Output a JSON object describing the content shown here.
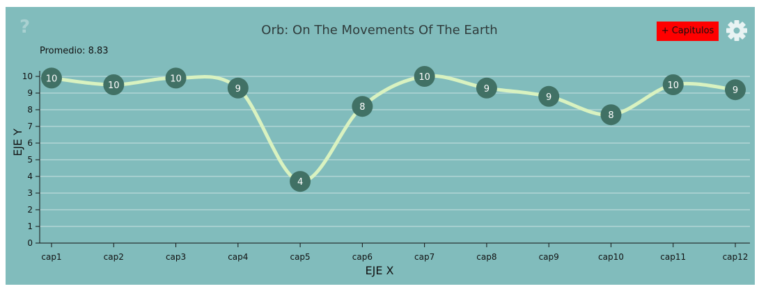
{
  "header": {
    "title": "Orb: On The Movements Of The Earth",
    "average": "Promedio: 8.83",
    "help_icon": "?",
    "add_button": "+ Capitulos",
    "settings_icon": "gear-icon"
  },
  "colors": {
    "panel": "#81bcbc",
    "line": "#d9f2c0",
    "point": "#417165",
    "grid": "#b3d5d5",
    "button": "#ff0000"
  },
  "chart_data": {
    "type": "line",
    "categories": [
      "cap1",
      "cap2",
      "cap3",
      "cap4",
      "cap5",
      "cap6",
      "cap7",
      "cap8",
      "cap9",
      "cap10",
      "cap11",
      "cap12"
    ],
    "values": [
      9.9,
      9.5,
      9.9,
      9.3,
      3.7,
      8.2,
      10.0,
      9.3,
      8.8,
      7.7,
      9.5,
      9.2
    ],
    "labels": [
      "10",
      "10",
      "10",
      "9",
      "4",
      "8",
      "10",
      "9",
      "9",
      "8",
      "10",
      "9"
    ],
    "xlabel": "EJE X",
    "ylabel": "EJE Y",
    "ylim": [
      0,
      10
    ],
    "yticks": [
      "0",
      "1",
      "2",
      "3",
      "4",
      "5",
      "6",
      "7",
      "8",
      "9",
      "10"
    ],
    "grid": true,
    "curve": "smooth"
  }
}
